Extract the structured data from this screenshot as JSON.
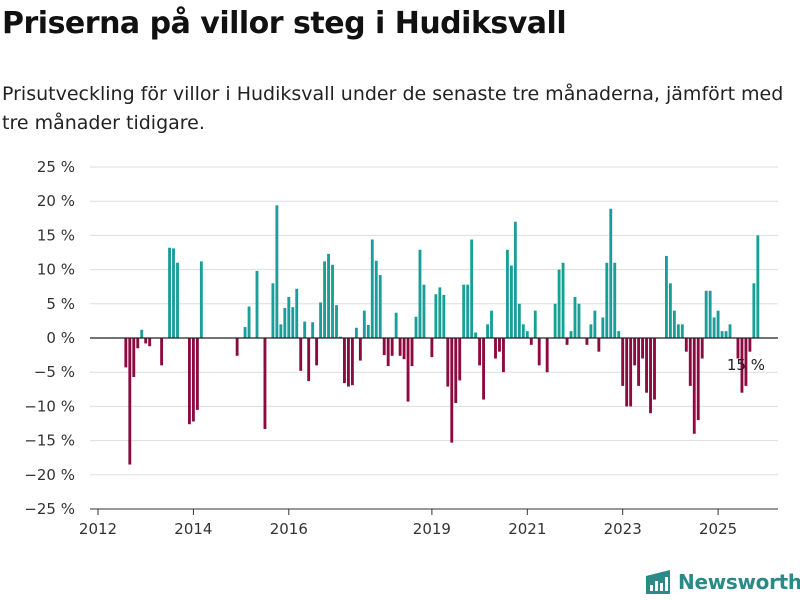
{
  "title": "Priserna på villor steg i Hudiksvall",
  "subtitle": "Prisutveckling för villor i Hudiksvall under de senaste tre månaderna, jämfört med tre månader tidigare.",
  "brand": "Newsworthy",
  "colors": {
    "positive": "#1a9e98",
    "negative": "#8c0a3f",
    "grid": "#dddddd",
    "axis": "#333333",
    "brand": "#2a8a88"
  },
  "chart_data": {
    "type": "bar",
    "ylim": [
      -25,
      25
    ],
    "yticks": [
      {
        "value": 25,
        "label": "25 %"
      },
      {
        "value": 20,
        "label": "20 %"
      },
      {
        "value": 15,
        "label": "15 %"
      },
      {
        "value": 10,
        "label": "10 %"
      },
      {
        "value": 5,
        "label": "5 %"
      },
      {
        "value": 0,
        "label": "0 %"
      },
      {
        "value": -5,
        "label": "−5 %"
      },
      {
        "value": -10,
        "label": "−10 %"
      },
      {
        "value": -15,
        "label": "−15 %"
      },
      {
        "value": -20,
        "label": "−20 %"
      },
      {
        "value": -25,
        "label": "−25 %"
      }
    ],
    "xticks": [
      {
        "year": 2012,
        "label": "2012"
      },
      {
        "year": 2014,
        "label": "2014"
      },
      {
        "year": 2016,
        "label": "2016"
      },
      {
        "year": 2019,
        "label": "2019"
      },
      {
        "year": 2021,
        "label": "2021"
      },
      {
        "year": 2023,
        "label": "2023"
      },
      {
        "year": 2025,
        "label": "2025"
      }
    ],
    "start": "2012-01",
    "annotation": {
      "text": "15 %",
      "index": 163
    },
    "values": [
      0,
      0,
      0,
      0,
      0,
      0,
      0,
      -4.3,
      -18.5,
      -5.7,
      -1.5,
      1.2,
      -0.8,
      -1.2,
      0,
      0,
      -4,
      0,
      13.2,
      13.1,
      11,
      0,
      0,
      -12.6,
      -12.2,
      -10.5,
      11.2,
      0,
      0,
      0,
      0,
      0,
      0,
      0,
      0,
      -2.6,
      0,
      1.6,
      4.6,
      0,
      9.8,
      0,
      -13.3,
      0,
      8,
      19.4,
      2,
      4.4,
      6,
      4.5,
      7.2,
      -4.8,
      2.4,
      -6.3,
      2.3,
      -4,
      5.2,
      11.2,
      12.3,
      10.7,
      4.8,
      0.2,
      -6.6,
      -7.1,
      -6.9,
      1.5,
      -3.3,
      4,
      1.9,
      14.4,
      11.3,
      9.2,
      -2.5,
      -4.1,
      -2.6,
      3.7,
      -2.6,
      -3.1,
      -9.3,
      -4.1,
      3.1,
      12.9,
      7.8,
      0,
      -2.8,
      6.4,
      7.4,
      6.3,
      -7.1,
      -15.3,
      -9.5,
      -6.2,
      7.8,
      7.8,
      14.4,
      0.8,
      -4,
      -9,
      2,
      4,
      -3,
      -2,
      -5,
      12.9,
      10.6,
      17,
      5,
      2,
      1,
      -1,
      4,
      -4,
      0,
      -5,
      0,
      5,
      10,
      11,
      -1,
      1,
      6,
      5,
      0,
      -1,
      2,
      4,
      -2,
      3,
      11,
      18.9,
      11,
      1,
      -7,
      -10,
      -10,
      -4,
      -7,
      -3,
      -8,
      -11,
      -9,
      0,
      0,
      12,
      8,
      4,
      2,
      2,
      -2,
      -7,
      -14,
      -12,
      -3,
      6.9,
      6.9,
      3,
      4,
      1,
      1,
      2,
      0,
      -3,
      -8,
      -7,
      -2,
      8,
      15
    ]
  }
}
